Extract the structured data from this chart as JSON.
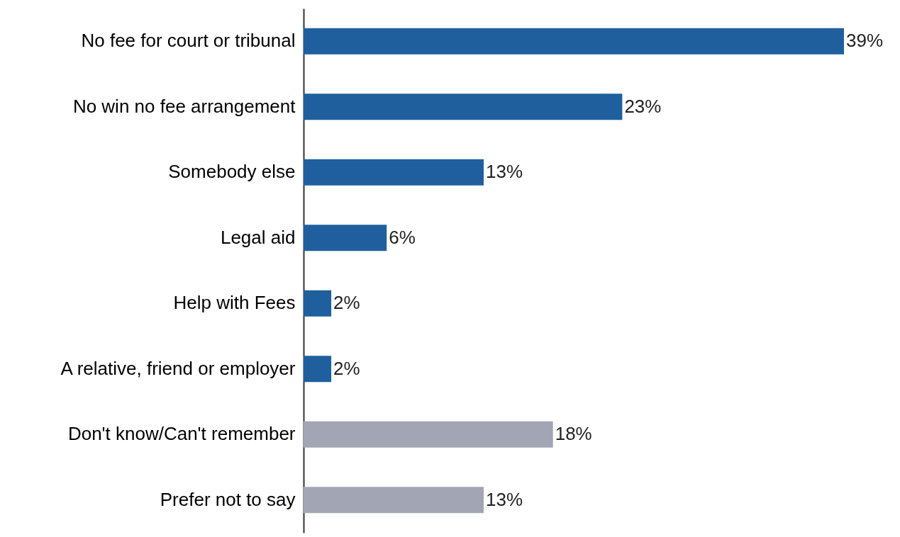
{
  "chart_data": {
    "type": "bar",
    "orientation": "horizontal",
    "categories": [
      "No fee for court or tribunal",
      "No win no fee arrangement",
      "Somebody else",
      "Legal aid",
      "Help with Fees",
      "A relative, friend or employer",
      "Don't know/Can't remember",
      "Prefer not to say"
    ],
    "values": [
      39,
      23,
      13,
      6,
      2,
      2,
      18,
      13
    ],
    "value_labels": [
      "39%",
      "23%",
      "13%",
      "6%",
      "2%",
      "2%",
      "18%",
      "13%"
    ],
    "colors": [
      "#1f5f9e",
      "#1f5f9e",
      "#1f5f9e",
      "#1f5f9e",
      "#1f5f9e",
      "#1f5f9e",
      "#a2a5b3",
      "#a2a5b3"
    ]
  }
}
